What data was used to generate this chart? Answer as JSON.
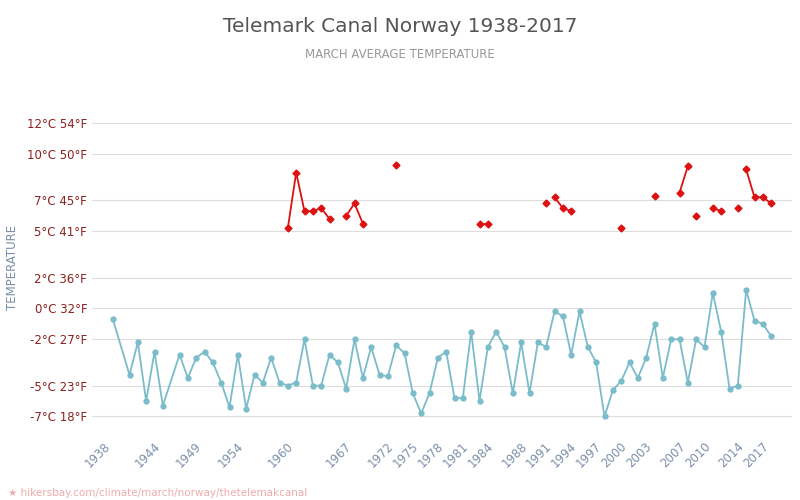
{
  "title": "Telemark Canal Norway 1938-2017",
  "subtitle": "MARCH AVERAGE TEMPERATURE",
  "ylabel": "TEMPERATURE",
  "footer": "hikersbay.com/climate/march/norway/thetelemakcanal",
  "title_color": "#555555",
  "subtitle_color": "#999999",
  "ylabel_color": "#7b8faa",
  "axis_label_color": "#8b2020",
  "grid_color": "#dddddd",
  "night_color": "#7abcca",
  "day_color": "#dd1111",
  "bg_color": "#ffffff",
  "ylim_c": [
    -8.2,
    13.5
  ],
  "yticks_c": [
    -7,
    -5,
    -2,
    0,
    2,
    5,
    7,
    10,
    12
  ],
  "ytick_labels": [
    "-7°C 18°F",
    "-5°C 23°F",
    "-2°C 27°F",
    "0°C 32°F",
    "2°C 36°F",
    "5°C 41°F",
    "7°C 45°F",
    "10°C 50°F",
    "12°C 54°F"
  ],
  "night_years": [
    1938,
    1940,
    1941,
    1942,
    1943,
    1944,
    1946,
    1947,
    1948,
    1949,
    1950,
    1951,
    1952,
    1953,
    1954,
    1955,
    1956,
    1957,
    1958,
    1959,
    1960,
    1961,
    1962,
    1963,
    1964,
    1965,
    1966,
    1967,
    1968,
    1969,
    1970,
    1971,
    1972,
    1973,
    1974,
    1975,
    1976,
    1977,
    1978,
    1979,
    1980,
    1981,
    1982,
    1983,
    1984,
    1985,
    1986,
    1987,
    1988,
    1989,
    1990,
    1991,
    1992,
    1993,
    1994,
    1995,
    1996,
    1997,
    1998,
    1999,
    2000,
    2001,
    2002,
    2003,
    2004,
    2005,
    2006,
    2007,
    2008,
    2009,
    2010,
    2011,
    2012,
    2013,
    2014,
    2015,
    2016,
    2017
  ],
  "night_temps": [
    -0.7,
    -4.3,
    -2.2,
    -6.0,
    -2.8,
    -6.3,
    -3.0,
    -4.5,
    -3.2,
    -2.8,
    -3.5,
    -4.8,
    -6.4,
    -3.0,
    -6.5,
    -4.3,
    -4.8,
    -3.2,
    -4.8,
    -5.0,
    -4.8,
    -2.0,
    -5.0,
    -5.0,
    -3.0,
    -3.5,
    -5.2,
    -2.0,
    -4.5,
    -2.5,
    -4.3,
    -4.4,
    -2.4,
    -2.9,
    -5.5,
    -6.8,
    -5.5,
    -3.2,
    -2.8,
    -5.8,
    -5.8,
    -1.5,
    -6.0,
    -2.5,
    -1.5,
    -2.5,
    -5.5,
    -2.2,
    -5.5,
    -2.2,
    -2.5,
    -0.2,
    -0.5,
    -3.0,
    -0.2,
    -2.5,
    -3.5,
    -7.0,
    -5.3,
    -4.7,
    -3.5,
    -4.5,
    -3.2,
    -1.0,
    -4.5,
    -2.0,
    -2.0,
    -4.8,
    -2.0,
    -2.5,
    1.0,
    -1.5,
    -5.2,
    -5.0,
    1.2,
    -0.8,
    -1.0,
    -1.8
  ],
  "day_segments": [
    {
      "years": [
        1959,
        1960,
        1961,
        1962,
        1963,
        1964
      ],
      "temps": [
        5.2,
        8.8,
        6.3,
        6.3,
        6.5,
        5.8
      ]
    },
    {
      "years": [
        1966,
        1967,
        1968
      ],
      "temps": [
        6.0,
        6.8,
        5.5
      ]
    },
    {
      "years": [
        1972
      ],
      "temps": [
        9.3
      ]
    },
    {
      "years": [
        1982,
        1983
      ],
      "temps": [
        5.5,
        5.5
      ]
    },
    {
      "years": [
        1990
      ],
      "temps": [
        6.8
      ]
    },
    {
      "years": [
        1991,
        1992,
        1993
      ],
      "temps": [
        7.2,
        6.5,
        6.3
      ]
    },
    {
      "years": [
        1999
      ],
      "temps": [
        5.2
      ]
    },
    {
      "years": [
        2003
      ],
      "temps": [
        7.3
      ]
    },
    {
      "years": [
        2006,
        2007
      ],
      "temps": [
        7.5,
        9.2
      ]
    },
    {
      "years": [
        2008
      ],
      "temps": [
        6.0
      ]
    },
    {
      "years": [
        2010,
        2011
      ],
      "temps": [
        6.5,
        6.3
      ]
    },
    {
      "years": [
        2013
      ],
      "temps": [
        6.5
      ]
    },
    {
      "years": [
        2014,
        2015,
        2016,
        2017
      ],
      "temps": [
        9.0,
        7.2,
        7.2,
        6.8
      ]
    }
  ],
  "xtick_years": [
    1938,
    1944,
    1949,
    1954,
    1960,
    1967,
    1972,
    1975,
    1978,
    1981,
    1984,
    1988,
    1991,
    1994,
    1997,
    2000,
    2003,
    2007,
    2010,
    2014,
    2017
  ],
  "xlim": [
    1935.5,
    2019.5
  ]
}
